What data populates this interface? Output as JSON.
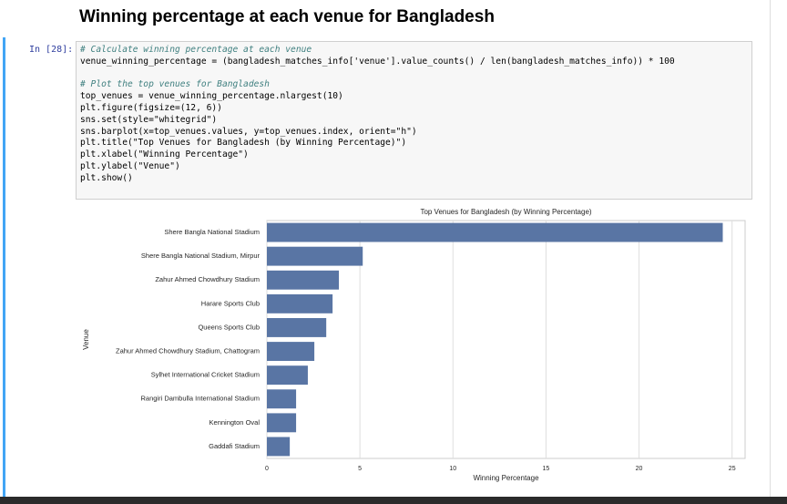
{
  "heading": "Winning percentage at each venue for Bangladesh",
  "cell": {
    "prompt": "In [28]:",
    "code_blocks": [
      [
        "# Calculate winning percentage at each venue",
        "venue_winning_percentage = (bangladesh_matches_info['venue'].value_counts() / len(bangladesh_matches_info)) * 100"
      ],
      [
        "# Plot the top venues for Bangladesh",
        "top_venues = venue_winning_percentage.nlargest(10)",
        "plt.figure(figsize=(12, 6))",
        "sns.set(style=\"whitegrid\")",
        "sns.barplot(x=top_venues.values, y=top_venues.index, orient=\"h\")",
        "plt.title(\"Top Venues for Bangladesh (by Winning Percentage)\")",
        "plt.xlabel(\"Winning Percentage\")",
        "plt.ylabel(\"Venue\")",
        "plt.show()"
      ]
    ]
  },
  "chart_data": {
    "type": "barh",
    "title": "Top Venues for Bangladesh (by Winning Percentage)",
    "x_label": "Winning Percentage",
    "y_label": "Venue",
    "categories": [
      "Shere Bangla National Stadium",
      "Shere Bangla National Stadium, Mirpur",
      "Zahur Ahmed Chowdhury Stadium",
      "Harare Sports Club",
      "Queens Sports Club",
      "Zahur Ahmed Chowdhury Stadium, Chattogram",
      "Sylhet International Cricket Stadium",
      "Rangiri Dambulla International Stadium",
      "Kennington Oval",
      "Gaddafi Stadium"
    ],
    "values": [
      24.5,
      5.15,
      3.87,
      3.53,
      3.19,
      2.55,
      2.2,
      1.57,
      1.57,
      1.23
    ],
    "color": "#5975a4",
    "xlim": [
      0,
      25.7
    ],
    "xticks": [
      0,
      5,
      10,
      15,
      20,
      25
    ],
    "grid": true
  }
}
